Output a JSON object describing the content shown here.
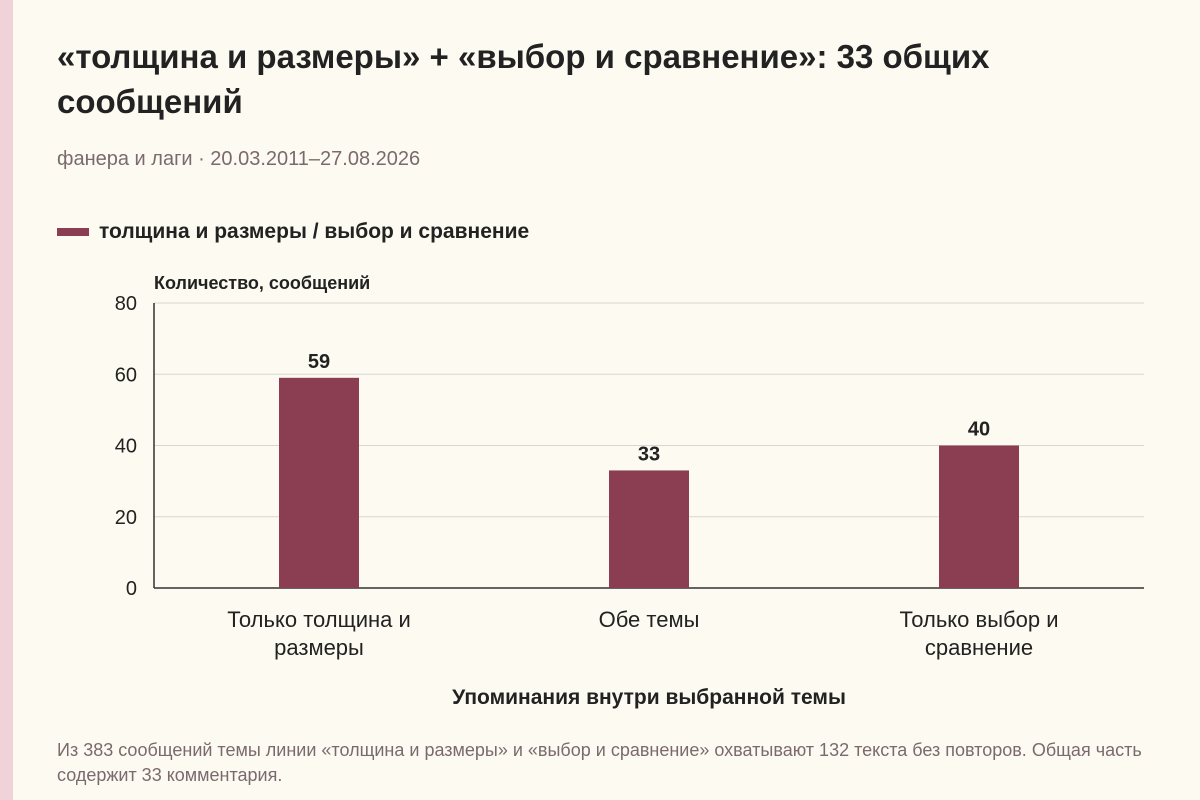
{
  "header": {
    "title": "«толщина и размеры» + «выбор и сравнение»: 33 общих сообщений",
    "subtitle": "фанера и лаги · 20.03.2011–27.08.2026"
  },
  "footnote": "Из 383 сообщений темы линии «толщина и размеры» и «выбор и сравнение» охватывают 132 текста без повторов. Общая часть содержит 33 комментария.",
  "colors": {
    "bar": "#8b3d52",
    "accent_strip": "#f0d3d9",
    "background": "#fdfaf1"
  },
  "chart_data": {
    "type": "bar",
    "title": "«толщина и размеры» + «выбор и сравнение»: 33 общих сообщений",
    "subtitle": "фанера и лаги · 20.03.2011–27.08.2026",
    "xlabel": "Упоминания внутри выбранной темы",
    "ylabel": "Количество, сообщений",
    "categories": [
      "Только толщина и размеры",
      "Обе темы",
      "Только выбор и сравнение"
    ],
    "series": [
      {
        "name": "толщина и размеры / выбор и сравнение",
        "values": [
          59,
          33,
          40
        ]
      }
    ],
    "ylim": [
      0,
      80
    ],
    "yticks": [
      0,
      20,
      40,
      60,
      80
    ],
    "grid": true,
    "legend_position": "top-left",
    "data_labels": true
  }
}
